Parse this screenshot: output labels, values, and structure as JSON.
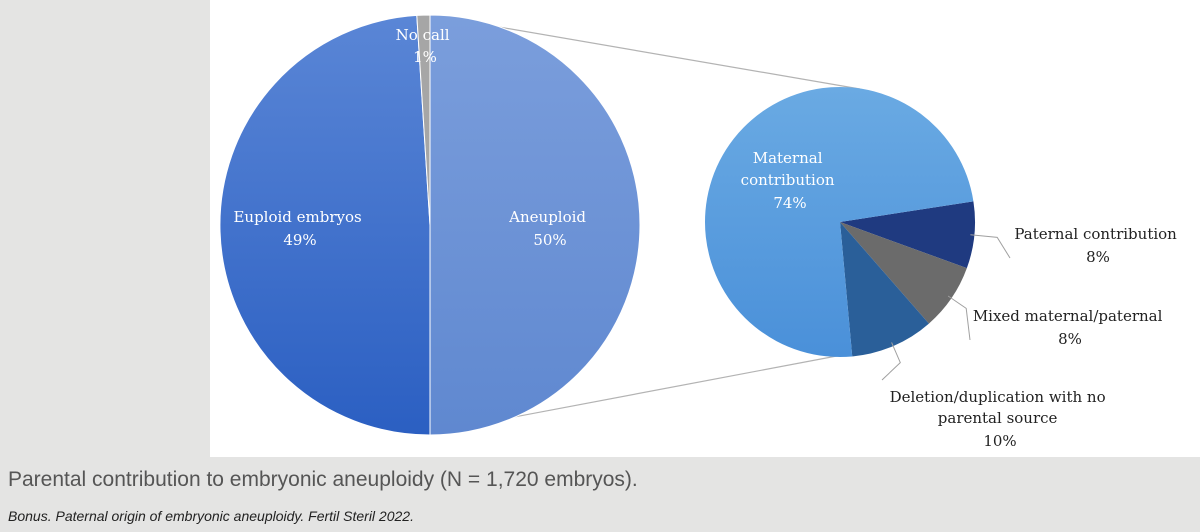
{
  "caption": "Parental contribution to embryonic aneuploidy (N = 1,720 embryos).",
  "source": "Bonus. Paternal origin of embryonic aneuploidy. Fertil Steril 2022.",
  "chart_data": [
    {
      "type": "pie",
      "slices": [
        {
          "label": "Euploid embryos",
          "value_label": "49%",
          "value": 49,
          "color": "#3a6ccc"
        },
        {
          "label": "Aneuploid",
          "value_label": "50%",
          "value": 50,
          "color": "#6d93d8"
        },
        {
          "label": "No call",
          "value_label": "1%",
          "value": 1,
          "color": "#a6a6a6"
        }
      ]
    },
    {
      "type": "pie",
      "slices": [
        {
          "label": "Maternal contribution",
          "value_label": "74%",
          "value": 74,
          "color": "#5a9ee0"
        },
        {
          "label": "Paternal contribution",
          "value_label": "8%",
          "value": 8,
          "color": "#1f3a80"
        },
        {
          "label": "Mixed maternal/paternal",
          "value_label": "8%",
          "value": 8,
          "color": "#6b6b6b"
        },
        {
          "label": "Deletion/duplication with no parental source",
          "value_label": "10%",
          "value": 10,
          "color": "#2a5f99"
        }
      ]
    }
  ]
}
